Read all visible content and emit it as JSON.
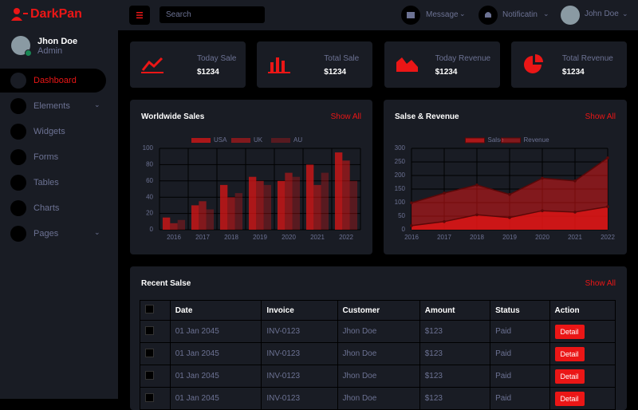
{
  "sidebar": {
    "brand": "DarkPan",
    "user": {
      "name": "Jhon Doe",
      "role": "Admin"
    },
    "nav": [
      "Dashboard",
      "Elements",
      "Widgets",
      "Forms",
      "Tables",
      "Charts",
      "Pages"
    ]
  },
  "topbar": {
    "search_placeholder": "Search",
    "message": "Message",
    "notification": "Notificatin",
    "user": "John Doe"
  },
  "stats": [
    {
      "label": "Today Sale",
      "value": "$1234"
    },
    {
      "label": "Total Sale",
      "value": "$1234"
    },
    {
      "label": "Today Revenue",
      "value": "$1234"
    },
    {
      "label": "Total Revenue",
      "value": "$1234"
    }
  ],
  "chart_data": [
    {
      "type": "bar",
      "title": "Worldwide Sales",
      "link": "Show All",
      "categories": [
        "2016",
        "2017",
        "2018",
        "2019",
        "2020",
        "2021",
        "2022"
      ],
      "series": [
        {
          "name": "USA",
          "color": "rgba(235, 22, 22, 0.7)",
          "values": [
            15,
            30,
            55,
            65,
            60,
            80,
            95
          ]
        },
        {
          "name": "UK",
          "color": "rgba(235, 22, 22, 0.5)",
          "values": [
            8,
            35,
            40,
            60,
            70,
            55,
            85
          ]
        },
        {
          "name": "AU",
          "color": "rgba(235, 22, 22, 0.3)",
          "values": [
            12,
            25,
            45,
            55,
            65,
            70,
            60
          ]
        }
      ],
      "ylim": [
        0,
        100
      ],
      "yticks": [
        0,
        20,
        40,
        60,
        80,
        100
      ],
      "grid": true
    },
    {
      "type": "area",
      "title": "Salse & Revenue",
      "link": "Show All",
      "categories": [
        "2016",
        "2017",
        "2018",
        "2019",
        "2020",
        "2021",
        "2022"
      ],
      "series": [
        {
          "name": "Salse",
          "color": "rgba(235, 22, 22, 0.7)",
          "border_color": "#5a0808",
          "values": [
            15,
            30,
            55,
            45,
            70,
            65,
            85
          ]
        },
        {
          "name": "Revenue",
          "color": "rgba(235, 22, 22, 0.5)",
          "border_color": "#5a0808",
          "values": [
            99,
            135,
            165,
            130,
            190,
            180,
            265
          ]
        }
      ],
      "ylim": [
        0,
        300
      ],
      "yticks": [
        0,
        50,
        100,
        150,
        200,
        250,
        300
      ],
      "grid": true
    }
  ],
  "sales_table": {
    "title": "Recent Salse",
    "link": "Show All",
    "columns": [
      "Date",
      "Invoice",
      "Customer",
      "Amount",
      "Status",
      "Action"
    ],
    "rows": [
      [
        "01 Jan 2045",
        "INV-0123",
        "Jhon Doe",
        "$123",
        "Paid",
        "Detail"
      ],
      [
        "01 Jan 2045",
        "INV-0123",
        "Jhon Doe",
        "$123",
        "Paid",
        "Detail"
      ],
      [
        "01 Jan 2045",
        "INV-0123",
        "Jhon Doe",
        "$123",
        "Paid",
        "Detail"
      ],
      [
        "01 Jan 2045",
        "INV-0123",
        "Jhon Doe",
        "$123",
        "Paid",
        "Detail"
      ]
    ]
  }
}
